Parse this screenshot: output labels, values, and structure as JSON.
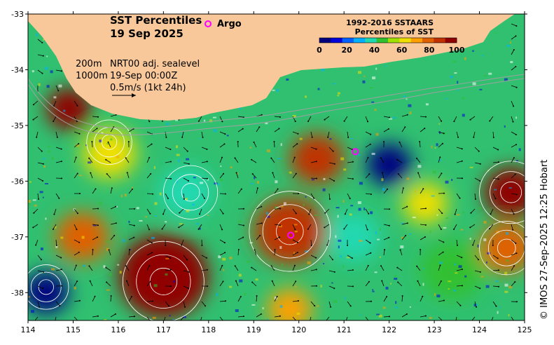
{
  "title": {
    "line1": "SST Percentiles",
    "line2": "19 Sep 2025"
  },
  "legend_argo": {
    "label": "Argo",
    "color": "#ff00ff"
  },
  "colorbar": {
    "title_line1": "1992-2016 SSTAARS",
    "title_line2": "Percentiles of SST",
    "tick_labels": [
      "0",
      "20",
      "40",
      "60",
      "80",
      "100"
    ],
    "colors": [
      "#00007f",
      "#0000d8",
      "#0060ff",
      "#00b0ff",
      "#20d8b0",
      "#30c030",
      "#a0e000",
      "#f0e000",
      "#ffa000",
      "#e06000",
      "#c03000",
      "#900000"
    ]
  },
  "info": {
    "depth_200": "200m",
    "depth_1000": "1000m",
    "sealevel_label": "NRT00 adj. sealevel",
    "datetime": "19-Sep 00:00Z",
    "scale_label": "0.5m/s (1kt 24h)"
  },
  "axes": {
    "x_ticks": [
      "114",
      "115",
      "116",
      "117",
      "118",
      "119",
      "120",
      "121",
      "122",
      "123",
      "124",
      "125"
    ],
    "y_ticks": [
      "-33",
      "-34",
      "-35",
      "-36",
      "-37",
      "-38"
    ]
  },
  "credit": "© IMOS 27-Sep-2025 12:25 Hobart",
  "colors": {
    "land": "#f8c89a",
    "frame": "#000000",
    "contour": "#ffffff",
    "isobath": "#a0a0a0"
  },
  "map_data": {
    "type": "sst-percentile-map",
    "lon_range": [
      114,
      125
    ],
    "lat_range": [
      -38.5,
      -33
    ],
    "argo_floats": [
      {
        "lon": 121.25,
        "lat": -35.47
      },
      {
        "lon": 119.82,
        "lat": -36.97
      }
    ],
    "percentile_blobs": [
      {
        "lon": 120.4,
        "lat": -35.6,
        "pct": 85,
        "r": 0.6
      },
      {
        "lon": 119.8,
        "lat": -36.9,
        "pct": 85,
        "r": 0.8
      },
      {
        "lon": 117.0,
        "lat": -37.7,
        "pct": 92,
        "r": 1.0
      },
      {
        "lon": 114.9,
        "lat": -34.7,
        "pct": 92,
        "r": 0.5
      },
      {
        "lon": 124.7,
        "lat": -36.2,
        "pct": 95,
        "r": 0.6
      },
      {
        "lon": 124.6,
        "lat": -37.2,
        "pct": 80,
        "r": 0.6
      },
      {
        "lon": 122.0,
        "lat": -35.7,
        "pct": 5,
        "r": 0.5
      },
      {
        "lon": 114.4,
        "lat": -38.0,
        "pct": 5,
        "r": 0.5
      },
      {
        "lon": 117.5,
        "lat": -36.2,
        "pct": 40,
        "r": 0.6
      },
      {
        "lon": 115.2,
        "lat": -37.0,
        "pct": 75,
        "r": 0.6
      },
      {
        "lon": 123.4,
        "lat": -37.6,
        "pct": 45,
        "r": 0.7
      },
      {
        "lon": 121.2,
        "lat": -37.0,
        "pct": 35,
        "r": 0.6
      },
      {
        "lon": 119.8,
        "lat": -38.3,
        "pct": 70,
        "r": 0.5
      },
      {
        "lon": 122.8,
        "lat": -36.4,
        "pct": 65,
        "r": 0.5
      },
      {
        "lon": 115.8,
        "lat": -35.5,
        "pct": 60,
        "r": 0.6
      }
    ]
  }
}
